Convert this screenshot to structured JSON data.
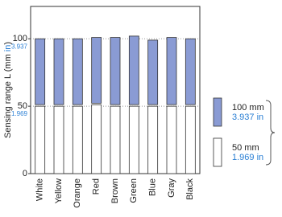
{
  "chart_data": {
    "type": "bar",
    "y_label": [
      "Sensing range L (mm ",
      "in",
      ")"
    ],
    "categories": [
      "White",
      "Yellow",
      "Orange",
      "Red",
      "Brown",
      "Green",
      "Blue",
      "Gray",
      "Black"
    ],
    "series": [
      {
        "name": "100 mm",
        "alt_name": "3.937 in",
        "color": "#8a9bd4",
        "values": [
          100,
          100,
          100,
          101,
          101,
          102,
          99,
          101,
          100
        ]
      },
      {
        "name": "50 mm",
        "alt_name": "1.969 in",
        "color": "#ffffff",
        "values": [
          50,
          50,
          50,
          51,
          50,
          50,
          50,
          50,
          50
        ]
      }
    ],
    "ylim": [
      0,
      124
    ],
    "yticks": [
      0,
      50,
      100
    ],
    "yticks_in": [
      {
        "value": 50,
        "label": "1.969"
      },
      {
        "value": 100,
        "label": "3.937"
      }
    ],
    "grid": true
  }
}
